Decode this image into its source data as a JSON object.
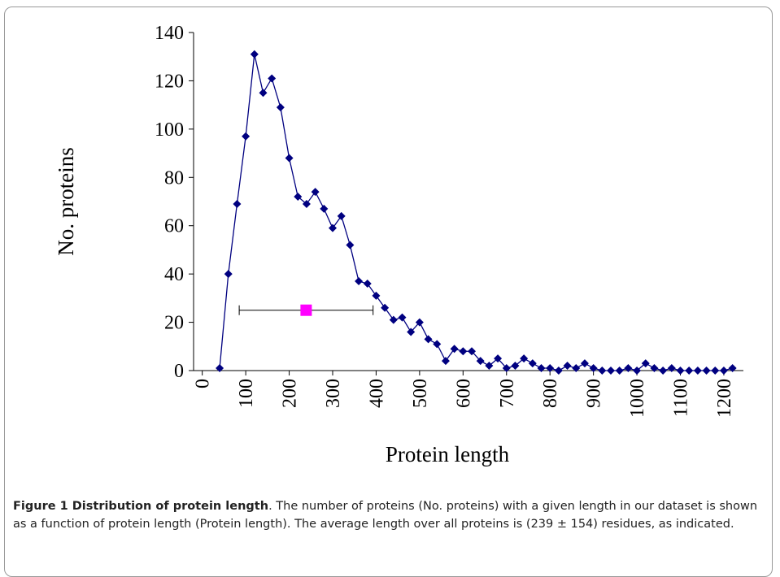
{
  "chart_data": {
    "type": "line",
    "xlabel": "Protein length",
    "ylabel": "No. proteins",
    "x": [
      40,
      60,
      80,
      100,
      120,
      140,
      160,
      180,
      200,
      220,
      240,
      260,
      280,
      300,
      320,
      340,
      360,
      380,
      400,
      420,
      440,
      460,
      480,
      500,
      520,
      540,
      560,
      580,
      600,
      620,
      640,
      660,
      680,
      700,
      720,
      740,
      760,
      780,
      800,
      820,
      840,
      860,
      880,
      900,
      920,
      940,
      960,
      980,
      1000,
      1020,
      1040,
      1060,
      1080,
      1100,
      1120,
      1140,
      1160,
      1180,
      1200,
      1220
    ],
    "series": [
      {
        "color": "#000080",
        "values": [
          1,
          40,
          69,
          97,
          131,
          115,
          121,
          109,
          88,
          72,
          69,
          74,
          67,
          59,
          64,
          52,
          37,
          36,
          31,
          26,
          21,
          22,
          16,
          20,
          13,
          11,
          4,
          9,
          8,
          8,
          4,
          2,
          5,
          1,
          2,
          5,
          3,
          1,
          1,
          0,
          2,
          1,
          3,
          1,
          0,
          0,
          0,
          1,
          0,
          3,
          1,
          0,
          1,
          0,
          0,
          0,
          0,
          0,
          0,
          1
        ]
      }
    ],
    "mean": {
      "x": 239,
      "y": 25,
      "error": 154,
      "color": "#ff00ff"
    },
    "xlim": [
      -20,
      1260
    ],
    "xticks": [
      0,
      100,
      200,
      300,
      400,
      500,
      600,
      700,
      800,
      900,
      1000,
      1100,
      1200
    ],
    "ylim": [
      0,
      140
    ],
    "yticks": [
      0,
      20,
      40,
      60,
      80,
      100,
      120,
      140
    ]
  },
  "caption": {
    "label": "Figure 1 Distribution of protein length",
    "text": ". The number of proteins (No. proteins) with a given length in our dataset is shown as a function of protein length (Protein length). The average length over all proteins is (239 ± 154) residues, as indicated."
  }
}
